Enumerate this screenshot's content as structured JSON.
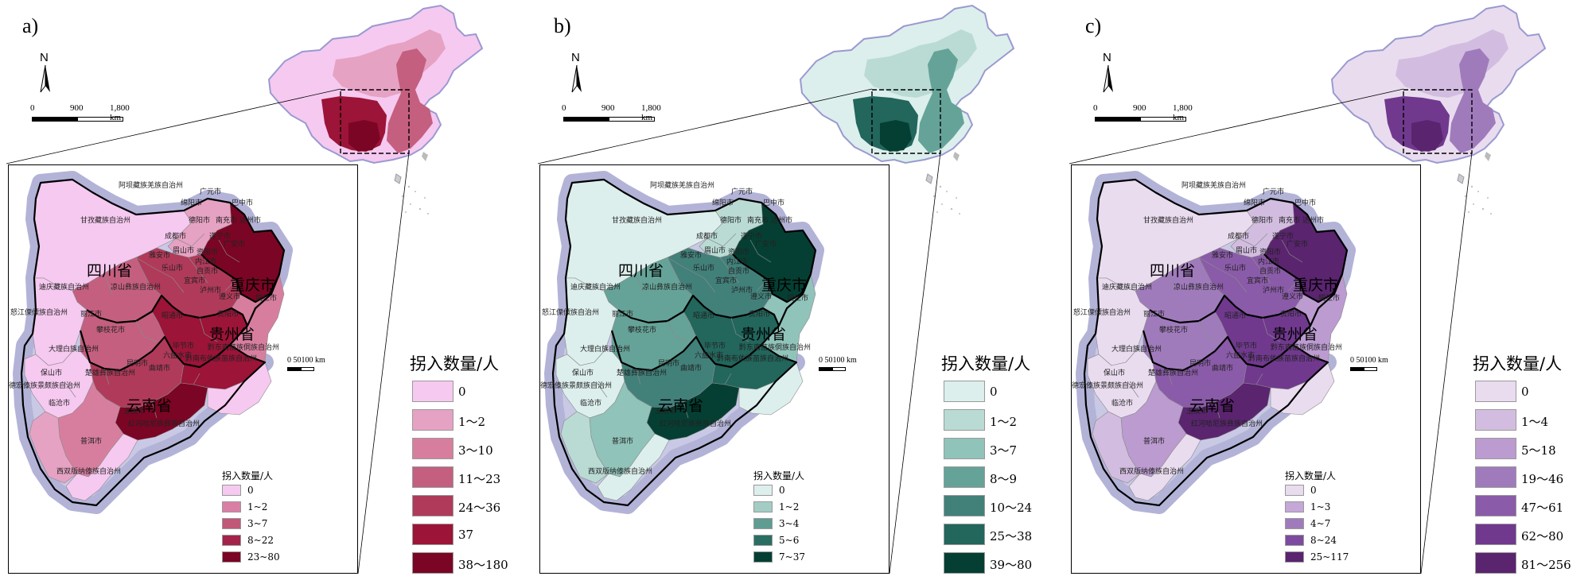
{
  "panels": [
    {
      "label": "a)",
      "north": "N",
      "scale": {
        "t0": "0",
        "t1": "900",
        "t2": "1,800 km"
      },
      "mini_scale": "0  50100 km",
      "legend_title": "拐入数量/人",
      "legend": [
        "0",
        "1～2",
        "3～10",
        "11～23",
        "24～36",
        "37",
        "38～180"
      ],
      "legend_colors": [
        "#f6c9f0",
        "#e6a2c3",
        "#d77e9e",
        "#c45f7f",
        "#b03a5a",
        "#9c1438",
        "#7b0524"
      ],
      "mini_legend_title": "拐入数量/人",
      "mini_legend": [
        "0",
        "1~2",
        "3~7",
        "8~22",
        "23~80"
      ],
      "mini_colors": [
        "#f6c9f0",
        "#d97fa5",
        "#c15878",
        "#a3234a",
        "#7b0524"
      ]
    },
    {
      "label": "b)",
      "north": "N",
      "scale": {
        "t0": "0",
        "t1": "900",
        "t2": "1,800 km"
      },
      "mini_scale": "0  50100 km",
      "legend_title": "拐入数量/人",
      "legend": [
        "0",
        "1～2",
        "3～7",
        "8～9",
        "10～24",
        "25～38",
        "39～80"
      ],
      "legend_colors": [
        "#dcefec",
        "#b9dbd4",
        "#90c3ba",
        "#65a398",
        "#42807a",
        "#22665c",
        "#053f33"
      ],
      "mini_legend_title": "拐入数量/人",
      "mini_legend": [
        "0",
        "1~2",
        "3~4",
        "5~6",
        "7~37"
      ],
      "mini_colors": [
        "#dcefec",
        "#a3cdc4",
        "#5f9c91",
        "#2a6e62",
        "#053f33"
      ]
    },
    {
      "label": "c)",
      "north": "N",
      "scale": {
        "t0": "0",
        "t1": "900",
        "t2": "1,800 km"
      },
      "mini_scale": "0  50100 km",
      "legend_title": "拐入数量/人",
      "legend": [
        "0",
        "1～4",
        "5～18",
        "19～46",
        "47～61",
        "62～80",
        "81～256"
      ],
      "legend_colors": [
        "#e9dcef",
        "#d2bde0",
        "#bb9bd0",
        "#a07bbc",
        "#8a5ba8",
        "#70398e",
        "#5a246f"
      ],
      "mini_legend_title": "拐入数量/人",
      "mini_legend": [
        "0",
        "1~3",
        "4~7",
        "8~24",
        "25~117"
      ],
      "mini_colors": [
        "#e9dcef",
        "#c5a7d8",
        "#a07bbc",
        "#7c4b9f",
        "#5a246f"
      ]
    }
  ],
  "place_labels": {
    "sichuan": "四川省",
    "chongqing": "重庆市",
    "guizhou": "贵州省",
    "yunnan": "云南省",
    "aba": "阿坝藏族羌族自治州",
    "ganzi": "甘孜藏族自治州",
    "liangshan": "凉山彝族自治州",
    "diqing": "迪庆藏族自治州",
    "nujiang": "怒江傈僳族自治州",
    "lijiang": "丽江市",
    "dali": "大理白族自治州",
    "baoshan": "保山市",
    "dehong": "德宏傣族景颇族自治州",
    "lincang": "临沧市",
    "puer": "普洱市",
    "xishuangbanna": "西双版纳傣族自治州",
    "honghe": "红河哈尼族彝族自治州",
    "yuxi": "玉溪市",
    "kunming": "昆明市",
    "chuxiong": "楚雄彝族自治州",
    "qujing": "曲靖市",
    "zhaotong": "昭通市",
    "panzhihua": "攀枝花市",
    "bijie": "毕节市",
    "liupanshui": "六盘水市",
    "zunyi": "遵义市",
    "tongren": "铜仁市",
    "guiyang": "贵阳市",
    "qiandongnan": "黔东南苗族侗族自治州",
    "qiannan": "黔南布依族苗族自治州",
    "guangyuan": "广元市",
    "bazhong": "巴中市",
    "mianyang": "绵阳市",
    "nanchong": "南充市",
    "dazhou": "达州市",
    "deyang": "德阳市",
    "chengdu": "成都市",
    "suining": "遂宁市",
    "guangan": "广安市",
    "yaan": "雅安市",
    "meishan": "眉山市",
    "ziyang": "资阳市",
    "neijiang": "内江市",
    "leshan": "乐山市",
    "zigong": "自贡市",
    "yibin": "宜宾市",
    "luzhou": "泸州市"
  }
}
